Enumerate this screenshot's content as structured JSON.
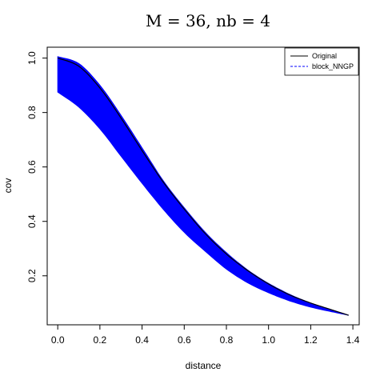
{
  "chart_data": {
    "type": "line",
    "title": "M  =  36,    nb  =  4",
    "xlabel": "distance",
    "ylabel": "cov",
    "xlim": [
      -0.05,
      1.43
    ],
    "ylim": [
      0.02,
      1.04
    ],
    "x_ticks": [
      0.0,
      0.2,
      0.4,
      0.6,
      0.8,
      1.0,
      1.2,
      1.4
    ],
    "x_tick_labels": [
      "0.0",
      "0.2",
      "0.4",
      "0.6",
      "0.8",
      "1.0",
      "1.2",
      "1.4"
    ],
    "y_ticks": [
      0.2,
      0.4,
      0.6,
      0.8,
      1.0
    ],
    "y_tick_labels": [
      "0.2",
      "0.4",
      "0.6",
      "0.8",
      "1.0"
    ],
    "grid": false,
    "legend_position": "top-right",
    "series": [
      {
        "name": "Original",
        "style": "solid",
        "color": "#000000",
        "x": [
          0.0,
          0.1,
          0.2,
          0.3,
          0.4,
          0.5,
          0.6,
          0.7,
          0.8,
          0.9,
          1.0,
          1.1,
          1.2,
          1.3,
          1.38
        ],
        "y": [
          1.0,
          0.97,
          0.89,
          0.78,
          0.66,
          0.545,
          0.445,
          0.355,
          0.28,
          0.22,
          0.17,
          0.13,
          0.1,
          0.075,
          0.055
        ]
      },
      {
        "name": "block_NNGP",
        "style": "dashed",
        "color": "#0000ff",
        "x": [
          0.0,
          0.1,
          0.2,
          0.3,
          0.4,
          0.5,
          0.6,
          0.7,
          0.8,
          0.9,
          1.0,
          1.1,
          1.2,
          1.3,
          1.38
        ],
        "y_upper": [
          1.005,
          0.98,
          0.9,
          0.79,
          0.67,
          0.55,
          0.45,
          0.36,
          0.285,
          0.222,
          0.172,
          0.132,
          0.1,
          0.075,
          0.055
        ],
        "y_lower": [
          0.875,
          0.82,
          0.74,
          0.64,
          0.54,
          0.445,
          0.36,
          0.29,
          0.225,
          0.175,
          0.138,
          0.108,
          0.085,
          0.068,
          0.055
        ]
      }
    ]
  }
}
